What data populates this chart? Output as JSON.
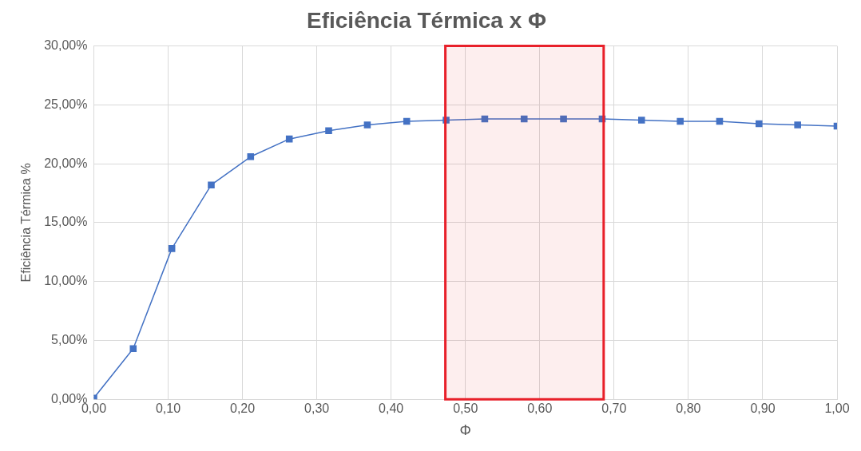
{
  "chart_data": {
    "type": "line",
    "title": "Eficiência Térmica x Φ",
    "xlabel": "Φ",
    "ylabel": "Eficiência Térmica %",
    "x": [
      0,
      0.053,
      0.105,
      0.158,
      0.211,
      0.263,
      0.316,
      0.368,
      0.421,
      0.474,
      0.526,
      0.579,
      0.632,
      0.684,
      0.737,
      0.789,
      0.842,
      0.895,
      0.947,
      1
    ],
    "series": [
      {
        "color": "#4472c4",
        "values": [
          0.1,
          4.3,
          12.8,
          18.2,
          20.6,
          22.1,
          22.8,
          23.3,
          23.6,
          23.7,
          23.8,
          23.8,
          23.8,
          23.8,
          23.7,
          23.6,
          23.6,
          23.4,
          23.3,
          23.2
        ]
      }
    ],
    "xlim": [
      0,
      1
    ],
    "ylim": [
      0,
      30
    ],
    "xticks": [
      {
        "value": 0,
        "label": "0,00"
      },
      {
        "value": 0.1,
        "label": "0,10"
      },
      {
        "value": 0.2,
        "label": "0,20"
      },
      {
        "value": 0.3,
        "label": "0,30"
      },
      {
        "value": 0.4,
        "label": "0,40"
      },
      {
        "value": 0.5,
        "label": "0,50"
      },
      {
        "value": 0.6,
        "label": "0,60"
      },
      {
        "value": 0.7,
        "label": "0,70"
      },
      {
        "value": 0.8,
        "label": "0,80"
      },
      {
        "value": 0.9,
        "label": "0,90"
      },
      {
        "value": 1,
        "label": "1,00"
      }
    ],
    "yticks": [
      {
        "value": 0,
        "label": "0,00%"
      },
      {
        "value": 5,
        "label": "5,00%"
      },
      {
        "value": 10,
        "label": "10,00%"
      },
      {
        "value": 15,
        "label": "15,00%"
      },
      {
        "value": 20,
        "label": "20,00%"
      },
      {
        "value": 25,
        "label": "25,00%"
      },
      {
        "value": 30,
        "label": "30,00%"
      }
    ],
    "bands": [
      {
        "axis": "x",
        "from": 0.473,
        "to": 0.686,
        "color": "#e8202a"
      }
    ],
    "grid": true,
    "marker": "square",
    "line_style": "solid"
  }
}
